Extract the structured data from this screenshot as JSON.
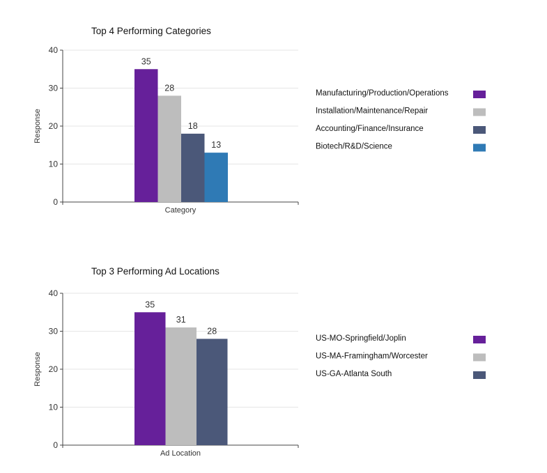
{
  "chart_data": [
    {
      "type": "bar",
      "title": "Top 4 Performing Categories",
      "xlabel": "Category",
      "ylabel": "Response",
      "ylim": [
        0,
        40
      ],
      "yticks": [
        0,
        10,
        20,
        30,
        40
      ],
      "grid": true,
      "legend_position": "right",
      "categories": [
        "Category"
      ],
      "series": [
        {
          "name": "Manufacturing/Production/Operations",
          "values": [
            35
          ],
          "color": "#66209a"
        },
        {
          "name": "Installation/Maintenance/Repair",
          "values": [
            28
          ],
          "color": "#bdbdbd"
        },
        {
          "name": "Accounting/Finance/Insurance",
          "values": [
            18
          ],
          "color": "#4b5879"
        },
        {
          "name": "Biotech/R&D/Science",
          "values": [
            13
          ],
          "color": "#2f7ab5"
        }
      ]
    },
    {
      "type": "bar",
      "title": "Top 3 Performing Ad Locations",
      "xlabel": "Ad Location",
      "ylabel": "Response",
      "ylim": [
        0,
        40
      ],
      "yticks": [
        0,
        10,
        20,
        30,
        40
      ],
      "grid": true,
      "legend_position": "right",
      "categories": [
        "Ad Location"
      ],
      "series": [
        {
          "name": "US-MO-Springfield/Joplin",
          "values": [
            35
          ],
          "color": "#66209a"
        },
        {
          "name": "US-MA-Framingham/Worcester",
          "values": [
            31
          ],
          "color": "#bdbdbd"
        },
        {
          "name": "US-GA-Atlanta South",
          "values": [
            28
          ],
          "color": "#4b5879"
        }
      ]
    }
  ]
}
